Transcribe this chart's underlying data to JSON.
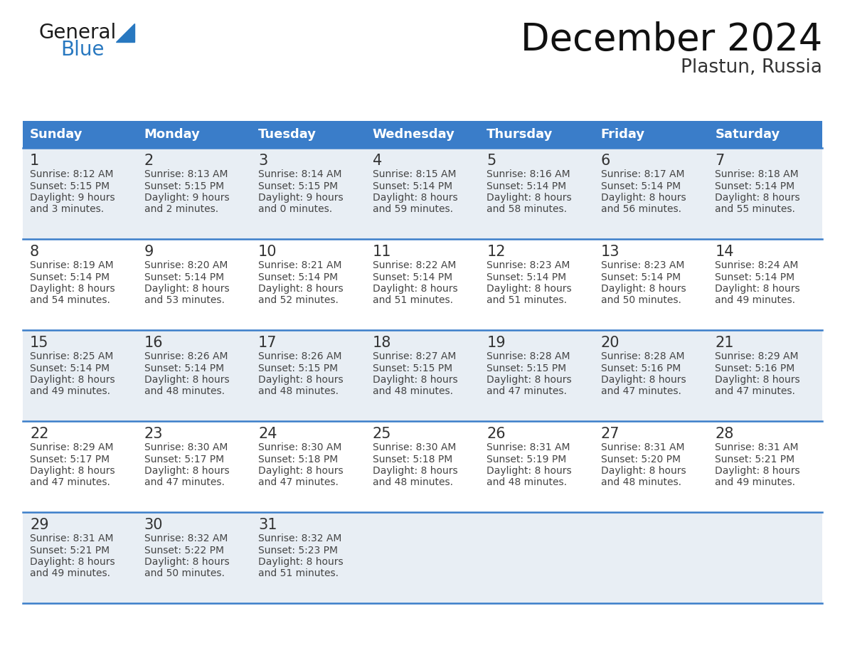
{
  "title": "December 2024",
  "subtitle": "Plastun, Russia",
  "header_color": "#3A7DC9",
  "header_text_color": "#FFFFFF",
  "day_names": [
    "Sunday",
    "Monday",
    "Tuesday",
    "Wednesday",
    "Thursday",
    "Friday",
    "Saturday"
  ],
  "background_color": "#FFFFFF",
  "cell_bg_white": "#FFFFFF",
  "cell_bg_gray": "#E8EEF4",
  "grid_color": "#3A7DC9",
  "text_color": "#444444",
  "day_num_color": "#333333",
  "calendar": [
    [
      {
        "day": 1,
        "sunrise": "8:12 AM",
        "sunset": "5:15 PM",
        "dl1": "Daylight: 9 hours",
        "dl2": "and 3 minutes."
      },
      {
        "day": 2,
        "sunrise": "8:13 AM",
        "sunset": "5:15 PM",
        "dl1": "Daylight: 9 hours",
        "dl2": "and 2 minutes."
      },
      {
        "day": 3,
        "sunrise": "8:14 AM",
        "sunset": "5:15 PM",
        "dl1": "Daylight: 9 hours",
        "dl2": "and 0 minutes."
      },
      {
        "day": 4,
        "sunrise": "8:15 AM",
        "sunset": "5:14 PM",
        "dl1": "Daylight: 8 hours",
        "dl2": "and 59 minutes."
      },
      {
        "day": 5,
        "sunrise": "8:16 AM",
        "sunset": "5:14 PM",
        "dl1": "Daylight: 8 hours",
        "dl2": "and 58 minutes."
      },
      {
        "day": 6,
        "sunrise": "8:17 AM",
        "sunset": "5:14 PM",
        "dl1": "Daylight: 8 hours",
        "dl2": "and 56 minutes."
      },
      {
        "day": 7,
        "sunrise": "8:18 AM",
        "sunset": "5:14 PM",
        "dl1": "Daylight: 8 hours",
        "dl2": "and 55 minutes."
      }
    ],
    [
      {
        "day": 8,
        "sunrise": "8:19 AM",
        "sunset": "5:14 PM",
        "dl1": "Daylight: 8 hours",
        "dl2": "and 54 minutes."
      },
      {
        "day": 9,
        "sunrise": "8:20 AM",
        "sunset": "5:14 PM",
        "dl1": "Daylight: 8 hours",
        "dl2": "and 53 minutes."
      },
      {
        "day": 10,
        "sunrise": "8:21 AM",
        "sunset": "5:14 PM",
        "dl1": "Daylight: 8 hours",
        "dl2": "and 52 minutes."
      },
      {
        "day": 11,
        "sunrise": "8:22 AM",
        "sunset": "5:14 PM",
        "dl1": "Daylight: 8 hours",
        "dl2": "and 51 minutes."
      },
      {
        "day": 12,
        "sunrise": "8:23 AM",
        "sunset": "5:14 PM",
        "dl1": "Daylight: 8 hours",
        "dl2": "and 51 minutes."
      },
      {
        "day": 13,
        "sunrise": "8:23 AM",
        "sunset": "5:14 PM",
        "dl1": "Daylight: 8 hours",
        "dl2": "and 50 minutes."
      },
      {
        "day": 14,
        "sunrise": "8:24 AM",
        "sunset": "5:14 PM",
        "dl1": "Daylight: 8 hours",
        "dl2": "and 49 minutes."
      }
    ],
    [
      {
        "day": 15,
        "sunrise": "8:25 AM",
        "sunset": "5:14 PM",
        "dl1": "Daylight: 8 hours",
        "dl2": "and 49 minutes."
      },
      {
        "day": 16,
        "sunrise": "8:26 AM",
        "sunset": "5:14 PM",
        "dl1": "Daylight: 8 hours",
        "dl2": "and 48 minutes."
      },
      {
        "day": 17,
        "sunrise": "8:26 AM",
        "sunset": "5:15 PM",
        "dl1": "Daylight: 8 hours",
        "dl2": "and 48 minutes."
      },
      {
        "day": 18,
        "sunrise": "8:27 AM",
        "sunset": "5:15 PM",
        "dl1": "Daylight: 8 hours",
        "dl2": "and 48 minutes."
      },
      {
        "day": 19,
        "sunrise": "8:28 AM",
        "sunset": "5:15 PM",
        "dl1": "Daylight: 8 hours",
        "dl2": "and 47 minutes."
      },
      {
        "day": 20,
        "sunrise": "8:28 AM",
        "sunset": "5:16 PM",
        "dl1": "Daylight: 8 hours",
        "dl2": "and 47 minutes."
      },
      {
        "day": 21,
        "sunrise": "8:29 AM",
        "sunset": "5:16 PM",
        "dl1": "Daylight: 8 hours",
        "dl2": "and 47 minutes."
      }
    ],
    [
      {
        "day": 22,
        "sunrise": "8:29 AM",
        "sunset": "5:17 PM",
        "dl1": "Daylight: 8 hours",
        "dl2": "and 47 minutes."
      },
      {
        "day": 23,
        "sunrise": "8:30 AM",
        "sunset": "5:17 PM",
        "dl1": "Daylight: 8 hours",
        "dl2": "and 47 minutes."
      },
      {
        "day": 24,
        "sunrise": "8:30 AM",
        "sunset": "5:18 PM",
        "dl1": "Daylight: 8 hours",
        "dl2": "and 47 minutes."
      },
      {
        "day": 25,
        "sunrise": "8:30 AM",
        "sunset": "5:18 PM",
        "dl1": "Daylight: 8 hours",
        "dl2": "and 48 minutes."
      },
      {
        "day": 26,
        "sunrise": "8:31 AM",
        "sunset": "5:19 PM",
        "dl1": "Daylight: 8 hours",
        "dl2": "and 48 minutes."
      },
      {
        "day": 27,
        "sunrise": "8:31 AM",
        "sunset": "5:20 PM",
        "dl1": "Daylight: 8 hours",
        "dl2": "and 48 minutes."
      },
      {
        "day": 28,
        "sunrise": "8:31 AM",
        "sunset": "5:21 PM",
        "dl1": "Daylight: 8 hours",
        "dl2": "and 49 minutes."
      }
    ],
    [
      {
        "day": 29,
        "sunrise": "8:31 AM",
        "sunset": "5:21 PM",
        "dl1": "Daylight: 8 hours",
        "dl2": "and 49 minutes."
      },
      {
        "day": 30,
        "sunrise": "8:32 AM",
        "sunset": "5:22 PM",
        "dl1": "Daylight: 8 hours",
        "dl2": "and 50 minutes."
      },
      {
        "day": 31,
        "sunrise": "8:32 AM",
        "sunset": "5:23 PM",
        "dl1": "Daylight: 8 hours",
        "dl2": "and 51 minutes."
      },
      null,
      null,
      null,
      null
    ]
  ],
  "logo_general_color": "#1a1a1a",
  "logo_blue_color": "#2878C0",
  "logo_triangle_color": "#2878C0",
  "fig_width": 11.88,
  "fig_height": 9.18,
  "dpi": 100
}
